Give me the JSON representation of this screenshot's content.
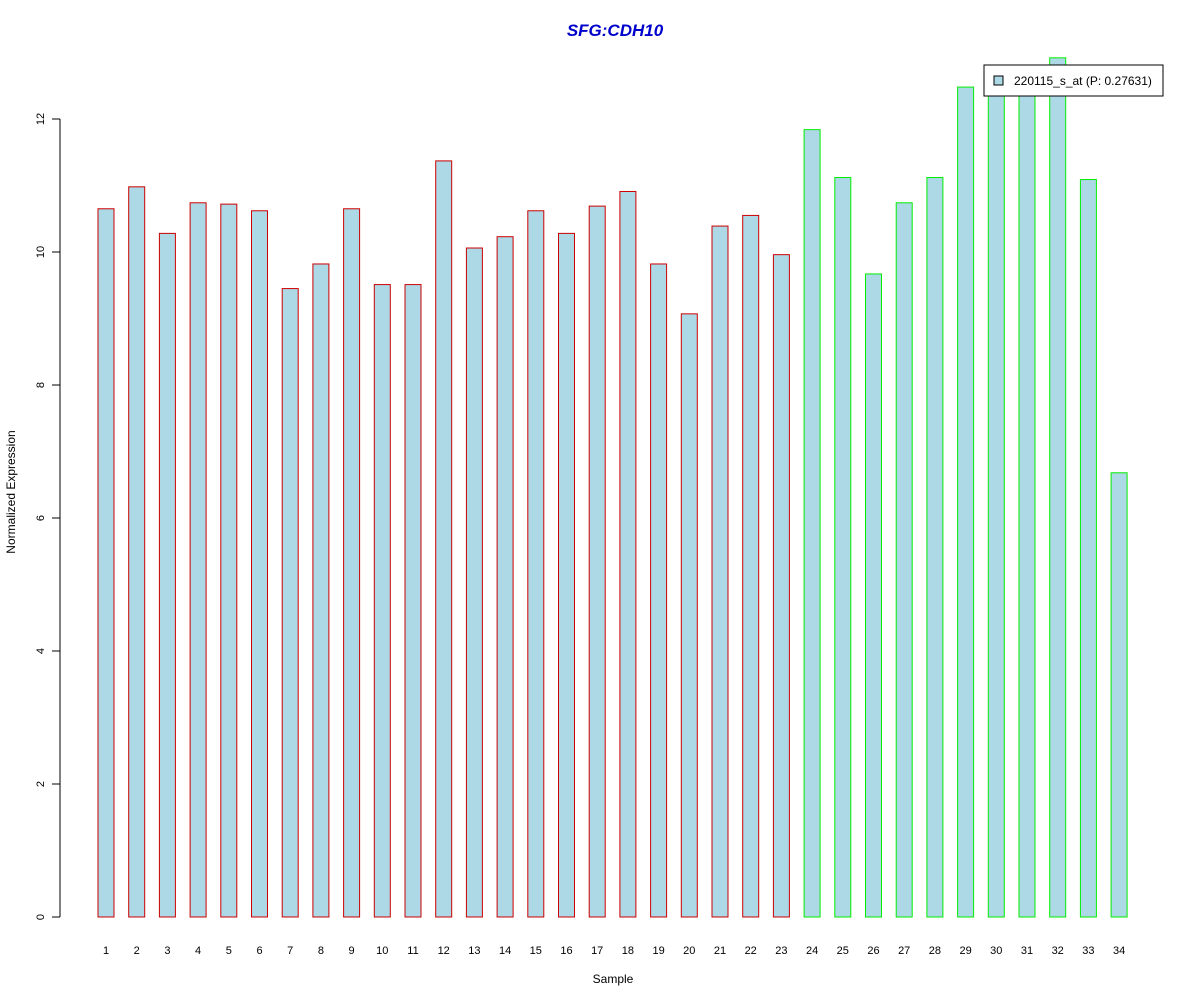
{
  "chart_data": {
    "type": "bar",
    "title": "SFG:CDH10",
    "xlabel": "Sample",
    "ylabel": "Normalized Expression",
    "categories": [
      "1",
      "2",
      "3",
      "4",
      "5",
      "6",
      "7",
      "8",
      "9",
      "10",
      "11",
      "12",
      "13",
      "14",
      "15",
      "16",
      "17",
      "18",
      "19",
      "20",
      "21",
      "22",
      "23",
      "24",
      "25",
      "26",
      "27",
      "28",
      "29",
      "30",
      "31",
      "32",
      "33",
      "34"
    ],
    "series": [
      {
        "name": "220115_s_at (P: 0.27631)",
        "values": [
          10.65,
          10.98,
          10.28,
          10.74,
          10.72,
          10.62,
          9.45,
          9.82,
          10.65,
          9.51,
          9.51,
          11.37,
          10.06,
          10.23,
          10.62,
          10.28,
          10.69,
          10.91,
          9.82,
          9.07,
          10.39,
          10.55,
          9.96,
          11.84,
          11.12,
          9.67,
          10.74,
          11.12,
          12.48,
          12.42,
          12.42,
          12.92,
          11.09,
          6.68
        ]
      }
    ],
    "group_border_colors": [
      "#cc0000",
      "#cc0000",
      "#cc0000",
      "#cc0000",
      "#cc0000",
      "#cc0000",
      "#cc0000",
      "#cc0000",
      "#cc0000",
      "#cc0000",
      "#cc0000",
      "#cc0000",
      "#cc0000",
      "#cc0000",
      "#cc0000",
      "#cc0000",
      "#cc0000",
      "#cc0000",
      "#cc0000",
      "#cc0000",
      "#cc0000",
      "#cc0000",
      "#cc0000",
      "#00ee00",
      "#00ee00",
      "#00ee00",
      "#00ee00",
      "#00ee00",
      "#00ee00",
      "#00ee00",
      "#00ee00",
      "#00ee00",
      "#00ee00",
      "#00ee00"
    ],
    "yticks": [
      "0",
      "2",
      "4",
      "6",
      "8",
      "10",
      "12"
    ],
    "ylim": [
      0,
      13
    ],
    "bar_fill": "#add8e6",
    "title_color": "#0000cc",
    "legend_position": "top-right",
    "grid": false
  }
}
